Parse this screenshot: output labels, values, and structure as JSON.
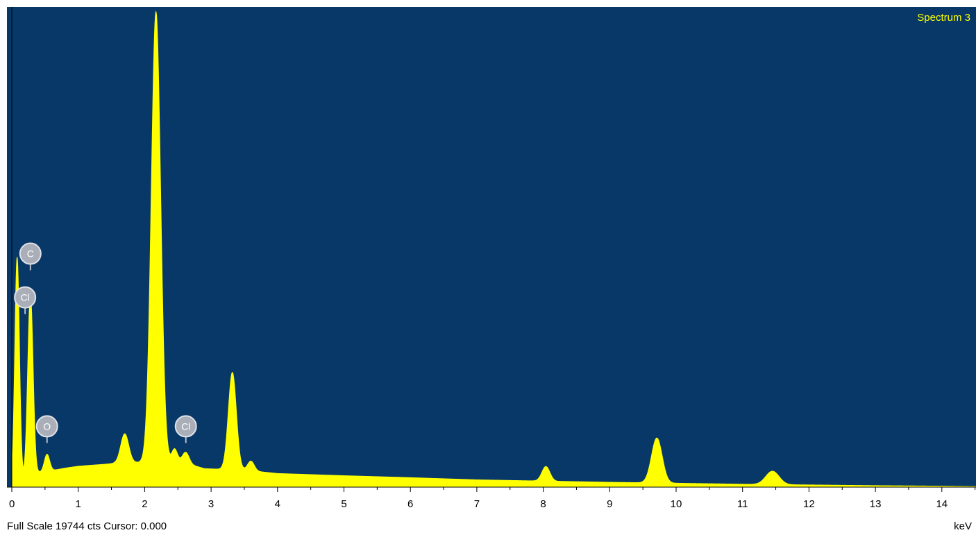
{
  "chart_data": {
    "type": "area",
    "title": "Spectrum 3",
    "xlabel": "keV",
    "xlim": [
      0,
      14.6
    ],
    "ylim": [
      0,
      19744
    ],
    "x_ticks": [
      0,
      1,
      2,
      3,
      4,
      5,
      6,
      7,
      8,
      9,
      10,
      11,
      12,
      13,
      14
    ],
    "fill_color": "#ffff00",
    "background_color": "#083868",
    "baseline": [
      [
        0.16,
        320
      ],
      [
        0.4,
        600
      ],
      [
        0.6,
        680
      ],
      [
        0.8,
        780
      ],
      [
        1.0,
        860
      ],
      [
        1.2,
        900
      ],
      [
        1.4,
        940
      ],
      [
        1.55,
        980
      ],
      [
        2.5,
        1080
      ],
      [
        2.9,
        760
      ],
      [
        3.5,
        700
      ],
      [
        4.0,
        560
      ],
      [
        5.0,
        470
      ],
      [
        6.0,
        390
      ],
      [
        7.0,
        300
      ],
      [
        8.0,
        250
      ],
      [
        9.0,
        200
      ],
      [
        10.0,
        160
      ],
      [
        11.0,
        120
      ],
      [
        12.0,
        90
      ],
      [
        13.0,
        60
      ],
      [
        14.0,
        40
      ],
      [
        14.6,
        20
      ]
    ],
    "peaks": [
      {
        "center": 0.08,
        "height": 9300,
        "width": 0.035
      },
      {
        "center": 0.28,
        "height": 7500,
        "width": 0.04
      },
      {
        "center": 0.53,
        "height": 700,
        "width": 0.04
      },
      {
        "center": 1.7,
        "height": 1200,
        "width": 0.06
      },
      {
        "center": 2.17,
        "height": 18500,
        "width": 0.07
      },
      {
        "center": 2.45,
        "height": 500,
        "width": 0.04
      },
      {
        "center": 2.62,
        "height": 450,
        "width": 0.05
      },
      {
        "center": 3.32,
        "height": 4000,
        "width": 0.06
      },
      {
        "center": 3.6,
        "height": 400,
        "width": 0.05
      },
      {
        "center": 8.04,
        "height": 600,
        "width": 0.06
      },
      {
        "center": 9.71,
        "height": 1850,
        "width": 0.08
      },
      {
        "center": 11.45,
        "height": 550,
        "width": 0.1
      }
    ],
    "markers": [
      {
        "label": "C",
        "x": 0.28,
        "y": 9600
      },
      {
        "label": "Cl",
        "x": 0.2,
        "y": 7800
      },
      {
        "label": "O",
        "x": 0.53,
        "y": 2500
      },
      {
        "label": "Cl",
        "x": 2.62,
        "y": 2500
      }
    ]
  },
  "status": {
    "full_scale": "Full Scale 19744 cts",
    "cursor": "Cursor: 0.000"
  }
}
